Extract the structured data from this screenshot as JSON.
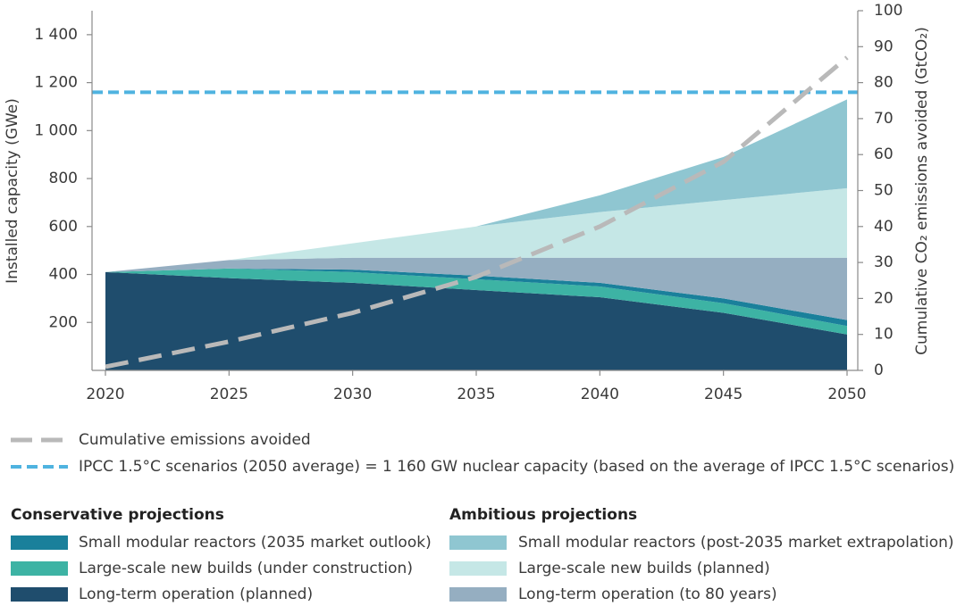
{
  "chart_data": {
    "type": "area",
    "x": [
      2020,
      2025,
      2030,
      2035,
      2040,
      2045,
      2050
    ],
    "xlim": [
      2020,
      2050
    ],
    "xticks": [
      2020,
      2025,
      2030,
      2035,
      2040,
      2045,
      2050
    ],
    "ylim": [
      0,
      1500
    ],
    "yticks": [
      200,
      400,
      600,
      800,
      {
        "value": 1000,
        "label": "1 000"
      },
      {
        "value": 1200,
        "label": "1 200"
      },
      {
        "value": 1400,
        "label": "1 400"
      }
    ],
    "y2lim": [
      0,
      100
    ],
    "y2ticks": [
      0,
      10,
      20,
      30,
      40,
      50,
      60,
      70,
      80,
      90,
      100
    ],
    "ylabel": "Installed capacity (GWe)",
    "y2label": "Cumulative CO₂ emissions avoided (GtCO₂)",
    "series": [
      {
        "name": "Long-term operation (planned)",
        "color": "#1f4d6d",
        "values": [
          410,
          385,
          365,
          335,
          305,
          240,
          150
        ]
      },
      {
        "name": "Large-scale new builds (under construction)",
        "color": "#3db3a4",
        "values": [
          0,
          40,
          45,
          45,
          45,
          40,
          35
        ]
      },
      {
        "name": "Small modular reactors (2035 market outlook)",
        "color": "#1a809b",
        "values": [
          0,
          0,
          10,
          15,
          15,
          20,
          25
        ]
      },
      {
        "name": "Long-term operation (to 80 years)",
        "color": "#95aec1",
        "values": [
          0,
          35,
          50,
          75,
          105,
          170,
          260
        ]
      },
      {
        "name": "Large-scale new builds (planned)",
        "color": "#c5e7e6",
        "values": [
          0,
          0,
          60,
          130,
          190,
          240,
          290
        ]
      },
      {
        "name": "Small modular reactors (post-2035 market extrapolation)",
        "color": "#8fc6d1",
        "values": [
          0,
          0,
          0,
          0,
          70,
          180,
          370
        ]
      }
    ],
    "lines": [
      {
        "name": "Cumulative emissions avoided",
        "color": "#b9b9b9",
        "axis": "y2",
        "values": [
          1,
          8,
          16,
          26,
          40,
          58,
          87
        ]
      }
    ],
    "reference_line": {
      "name": "IPCC 1.5°C scenarios (2050 average) = 1 160 GW nuclear capacity (based on the average of IPCC 1.5°C scenarios)",
      "value": 1160,
      "color": "#4fb3e0"
    },
    "legend_groups": [
      {
        "title": "Conservative projections"
      },
      {
        "title": "Ambitious projections"
      }
    ]
  }
}
